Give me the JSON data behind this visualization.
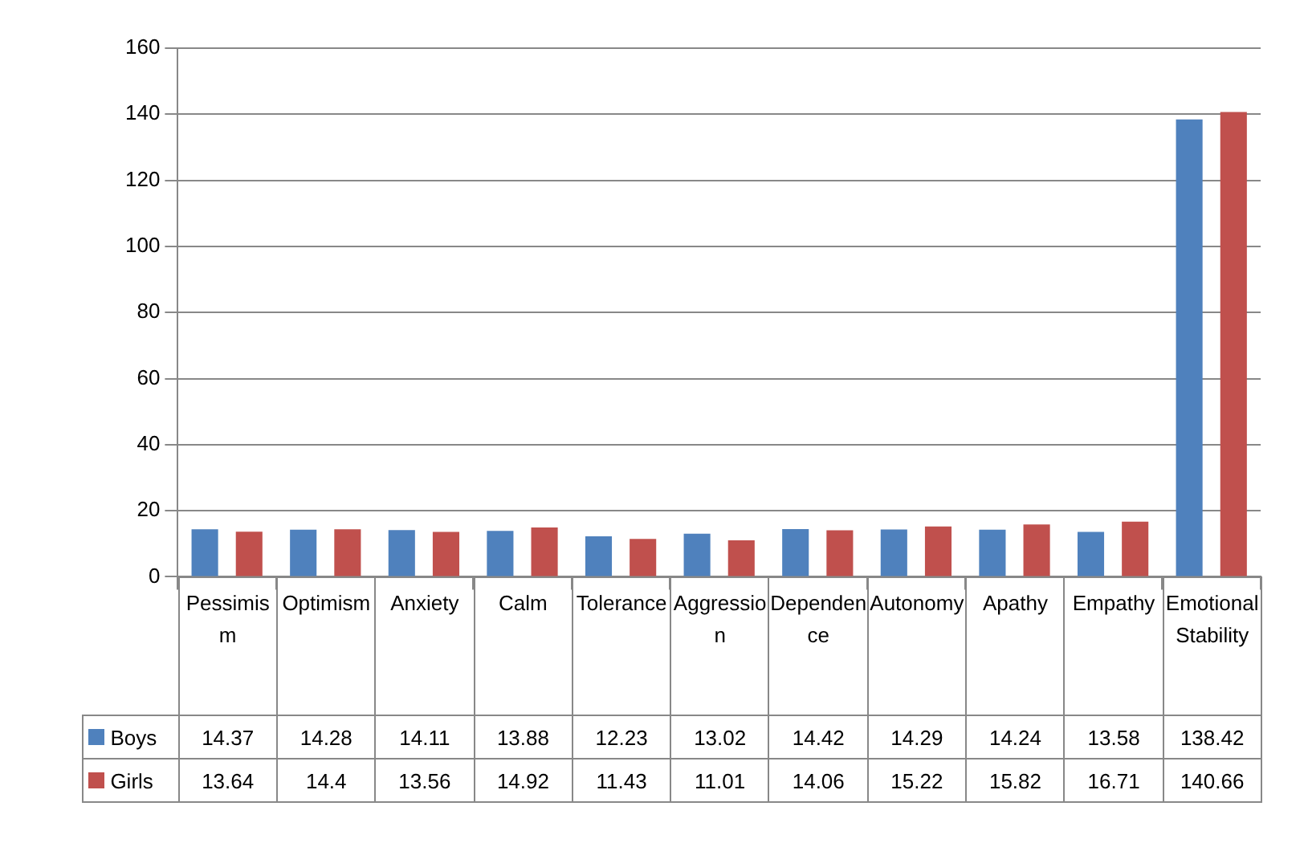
{
  "chart_data": {
    "type": "bar",
    "categories": [
      "Pessimism",
      "Optimism",
      "Anxiety",
      "Calm",
      "Tolerance",
      "Aggression",
      "Dependence",
      "Autonomy",
      "Apathy",
      "Empathy",
      "Emotional Stability"
    ],
    "series": [
      {
        "name": "Boys",
        "color": "#4f81bd",
        "values": [
          14.37,
          14.28,
          14.11,
          13.88,
          12.23,
          13.02,
          14.42,
          14.29,
          14.24,
          13.58,
          138.42
        ]
      },
      {
        "name": "Girls",
        "color": "#c0504d",
        "values": [
          13.64,
          14.4,
          13.56,
          14.92,
          11.43,
          11.01,
          14.06,
          15.22,
          15.82,
          16.71,
          140.66
        ]
      }
    ],
    "ylim": [
      0,
      160
    ],
    "yticks": [
      0,
      20,
      40,
      60,
      80,
      100,
      120,
      140,
      160
    ],
    "grid": "y",
    "legend": "bottom",
    "data_labels": true
  }
}
